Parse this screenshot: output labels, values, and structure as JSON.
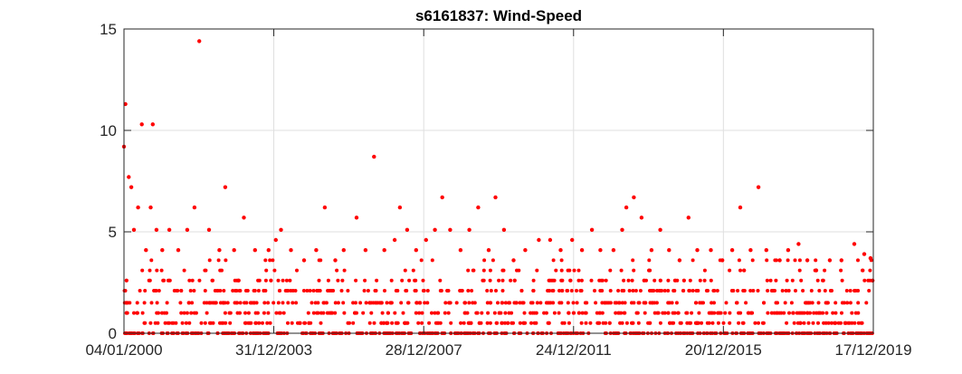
{
  "chart_data": {
    "type": "scatter",
    "title": "s6161837: Wind-Speed",
    "xlabel": "",
    "ylabel": "",
    "x_range": [
      "04/01/2000",
      "17/12/2019"
    ],
    "ylim": [
      0,
      15
    ],
    "x_ticks": [
      "04/01/2000",
      "31/12/2003",
      "28/12/2007",
      "24/12/2011",
      "20/12/2015",
      "17/12/2019"
    ],
    "y_ticks": [
      0,
      5,
      10,
      15
    ],
    "grid": true,
    "marker_color": "#ff0000",
    "series": [
      {
        "points": [
          [
            "2000-01-04",
            9.2
          ],
          [
            "2000-01-18",
            11.3
          ],
          [
            "2000-02-20",
            7.7
          ],
          [
            "2000-03-15",
            7.2
          ],
          [
            "2000-04-10",
            5.1
          ],
          [
            "2000-05-20",
            6.2
          ],
          [
            "2000-06-25",
            10.3
          ],
          [
            "2000-08-05",
            4.1
          ],
          [
            "2000-09-20",
            6.2
          ],
          [
            "2000-10-10",
            10.3
          ],
          [
            "2000-11-15",
            5.1
          ],
          [
            "2001-01-10",
            4.1
          ],
          [
            "2001-03-20",
            5.1
          ],
          [
            "2001-06-15",
            4.1
          ],
          [
            "2001-09-10",
            5.1
          ],
          [
            "2001-11-20",
            6.2
          ],
          [
            "2002-01-05",
            14.4
          ],
          [
            "2002-04-10",
            5.1
          ],
          [
            "2002-07-20",
            4.1
          ],
          [
            "2002-09-15",
            7.2
          ],
          [
            "2002-12-10",
            4.1
          ],
          [
            "2003-03-15",
            5.7
          ],
          [
            "2003-07-01",
            4.1
          ],
          [
            "2003-11-10",
            4.1
          ],
          [
            "2004-01-20",
            4.6
          ],
          [
            "2004-03-10",
            5.1
          ],
          [
            "2004-06-15",
            4.1
          ],
          [
            "2004-10-20",
            3.6
          ],
          [
            "2005-02-15",
            4.1
          ],
          [
            "2005-05-10",
            6.2
          ],
          [
            "2005-08-20",
            3.6
          ],
          [
            "2005-11-10",
            4.1
          ],
          [
            "2006-03-15",
            5.7
          ],
          [
            "2006-06-10",
            4.1
          ],
          [
            "2006-09-01",
            8.7
          ],
          [
            "2006-12-10",
            4.1
          ],
          [
            "2007-03-20",
            4.6
          ],
          [
            "2007-05-10",
            6.2
          ],
          [
            "2007-07-20",
            5.1
          ],
          [
            "2007-10-15",
            4.1
          ],
          [
            "2008-01-20",
            4.6
          ],
          [
            "2008-04-15",
            5.1
          ],
          [
            "2008-06-25",
            6.7
          ],
          [
            "2008-09-10",
            5.1
          ],
          [
            "2008-12-20",
            4.1
          ],
          [
            "2009-03-15",
            5.1
          ],
          [
            "2009-06-10",
            6.2
          ],
          [
            "2009-09-20",
            4.1
          ],
          [
            "2009-11-25",
            6.7
          ],
          [
            "2010-02-15",
            5.1
          ],
          [
            "2010-05-20",
            3.6
          ],
          [
            "2010-09-10",
            4.1
          ],
          [
            "2011-01-20",
            4.6
          ],
          [
            "2011-05-10",
            4.6
          ],
          [
            "2011-08-20",
            4.1
          ],
          [
            "2011-12-10",
            4.6
          ],
          [
            "2012-03-15",
            4.1
          ],
          [
            "2012-06-20",
            5.1
          ],
          [
            "2012-09-10",
            4.1
          ],
          [
            "2013-01-15",
            4.1
          ],
          [
            "2013-04-10",
            5.1
          ],
          [
            "2013-05-20",
            6.2
          ],
          [
            "2013-08-01",
            6.7
          ],
          [
            "2013-10-15",
            5.7
          ],
          [
            "2014-01-20",
            4.1
          ],
          [
            "2014-04-15",
            5.1
          ],
          [
            "2014-07-10",
            4.1
          ],
          [
            "2014-10-20",
            3.6
          ],
          [
            "2015-01-15",
            5.7
          ],
          [
            "2015-04-10",
            4.1
          ],
          [
            "2015-08-20",
            4.1
          ],
          [
            "2015-12-10",
            3.6
          ],
          [
            "2016-03-15",
            4.1
          ],
          [
            "2016-06-01",
            6.2
          ],
          [
            "2016-09-10",
            4.1
          ],
          [
            "2016-11-25",
            7.2
          ],
          [
            "2017-02-10",
            4.1
          ],
          [
            "2017-06-20",
            3.6
          ],
          [
            "2017-09-10",
            4.1
          ],
          [
            "2017-12-20",
            4.4
          ],
          [
            "2018-03-15",
            3.6
          ],
          [
            "2018-06-10",
            3.1
          ],
          [
            "2018-10-20",
            3.6
          ],
          [
            "2019-02-10",
            3.6
          ],
          [
            "2019-06-15",
            4.4
          ],
          [
            "2019-09-20",
            3.9
          ],
          [
            "2019-11-20",
            3.7
          ],
          [
            "2019-12-10",
            2.6
          ]
        ]
      }
    ]
  }
}
